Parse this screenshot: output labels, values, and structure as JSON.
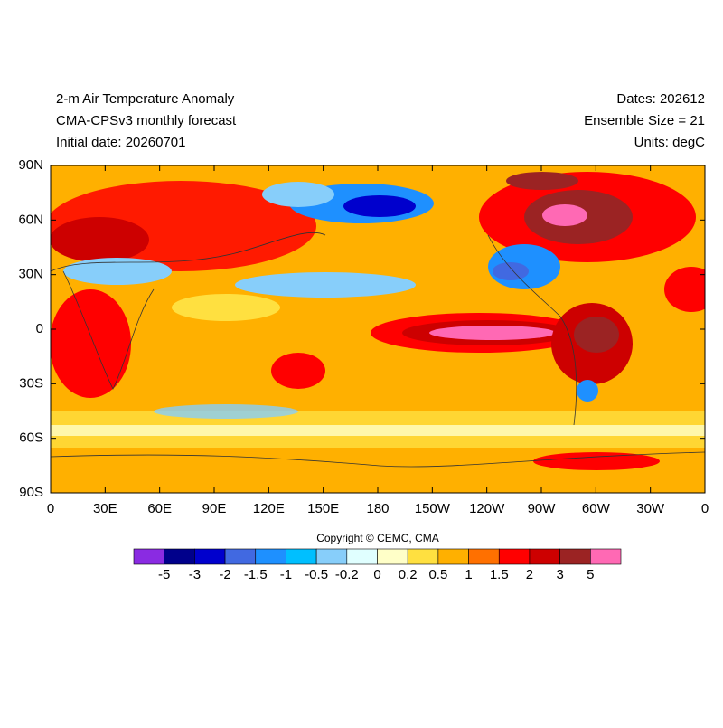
{
  "header": {
    "left": [
      "2-m Air Temperature Anomaly",
      "CMA-CPSv3 monthly forecast",
      "Initial date: 20260701"
    ],
    "right": [
      "Dates: 202612",
      "Ensemble Size = 21",
      "Units: degC"
    ]
  },
  "map": {
    "xlim": [
      0,
      360
    ],
    "ylim": [
      -90,
      90
    ],
    "xticks": [
      0,
      {
        "value": 30,
        "label": "30E"
      },
      {
        "value": 60,
        "label": "60E"
      },
      {
        "value": 90,
        "label": "90E"
      },
      {
        "value": 120,
        "label": "120E"
      },
      {
        "value": 150,
        "label": "150E"
      },
      {
        "value": 180,
        "label": "180"
      },
      {
        "value": 210,
        "label": "150W"
      },
      {
        "value": 240,
        "label": "120W"
      },
      {
        "value": 270,
        "label": "90W"
      },
      {
        "value": 300,
        "label": "60W"
      },
      {
        "value": 330,
        "label": "30W"
      },
      {
        "value": 360,
        "label": "0"
      }
    ],
    "yticks": [
      {
        "value": 90,
        "label": "90N"
      },
      {
        "value": 60,
        "label": "60N"
      },
      {
        "value": 30,
        "label": "30N"
      },
      0,
      {
        "value": -30,
        "label": "30S"
      },
      {
        "value": -60,
        "label": "60S"
      },
      {
        "value": -90,
        "label": "90S"
      }
    ]
  },
  "copyright": "Copyright © CEMC, CMA",
  "colorbar": {
    "levels": [
      -5,
      -3,
      -2,
      -1.5,
      -1,
      -0.5,
      -0.2,
      0,
      0.2,
      0.5,
      1,
      1.5,
      2,
      3,
      5
    ],
    "colors": [
      "#8a2be2",
      "#00008b",
      "#0000cd",
      "#4169e1",
      "#1e90ff",
      "#00bfff",
      "#87cefa",
      "#e0ffff",
      "#ffffc8",
      "#ffe040",
      "#ffb000",
      "#ff7000",
      "#ff0000",
      "#cd0000",
      "#9b2323",
      "#ff69b4"
    ]
  }
}
